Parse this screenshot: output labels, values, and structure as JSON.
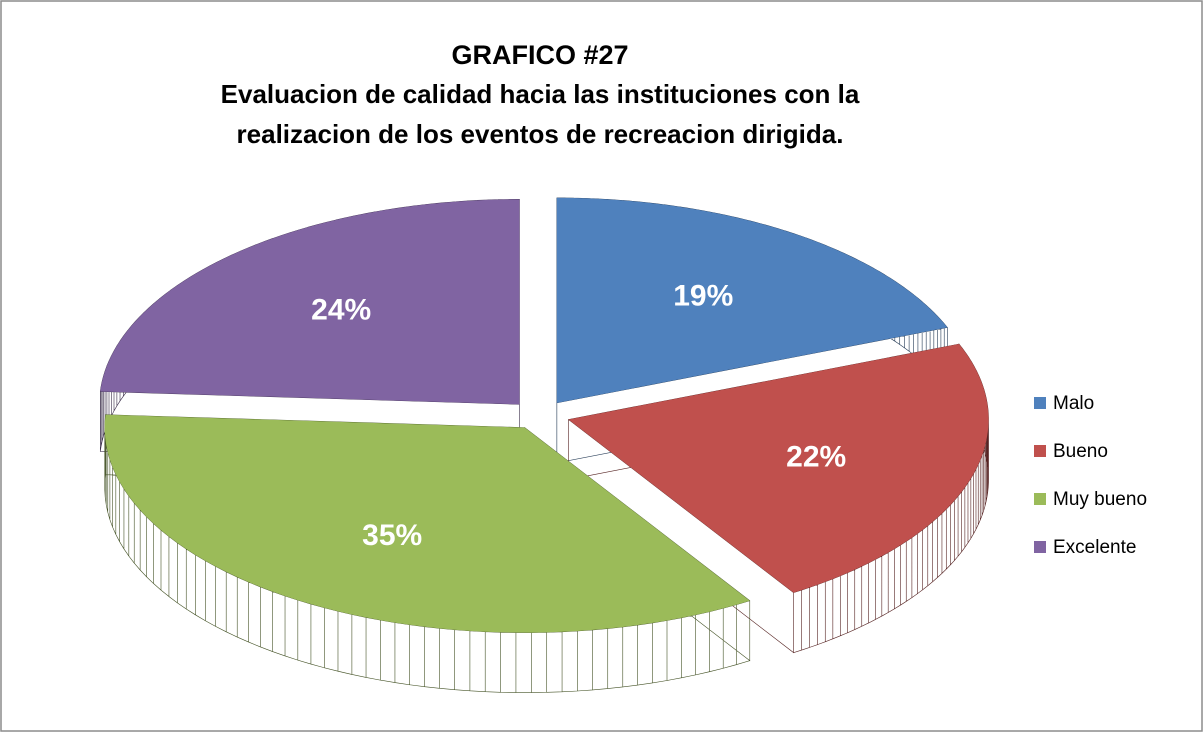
{
  "chart_data": {
    "type": "pie",
    "title": "GRAFICO  #27",
    "subtitle": "Evaluacion de calidad hacia las instituciones con la realizacion de los eventos de recreacion dirigida.",
    "categories": [
      "Malo",
      "Bueno",
      "Muy bueno",
      "Excelente"
    ],
    "values": [
      19,
      22,
      35,
      24
    ],
    "value_labels": [
      "19%",
      "22%",
      "35%",
      "24%"
    ],
    "colors": [
      "#4f81bd",
      "#c0504d",
      "#9bbb59",
      "#8064a2"
    ],
    "legend": "right"
  }
}
